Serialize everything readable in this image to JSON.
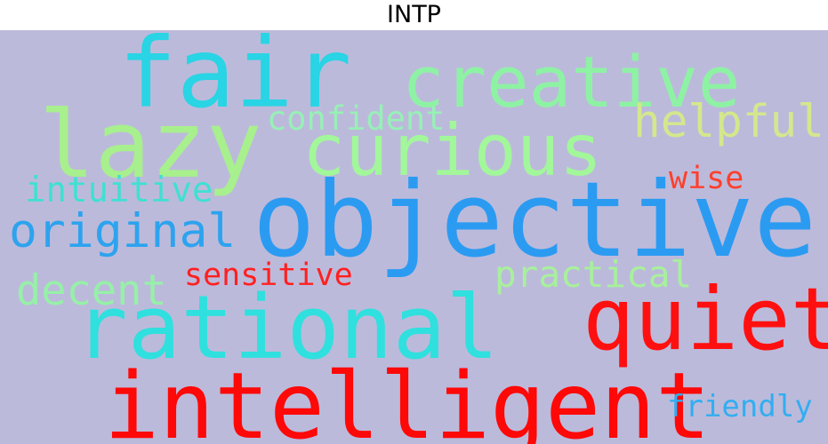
{
  "title": "INTP",
  "colors": {
    "background": "#bcbadb"
  },
  "words": [
    {
      "text": "fair",
      "color": "#29d4e4"
    },
    {
      "text": "creative",
      "color": "#8ef2a4"
    },
    {
      "text": "lazy",
      "color": "#a8ef8e"
    },
    {
      "text": "confident",
      "color": "#97f0b6"
    },
    {
      "text": "curious",
      "color": "#a2f79a"
    },
    {
      "text": "helpful",
      "color": "#d3e88c"
    },
    {
      "text": "intuitive",
      "color": "#3fe0d2"
    },
    {
      "text": "wise",
      "color": "#ff3f2c"
    },
    {
      "text": "objective",
      "color": "#2b9bf2"
    },
    {
      "text": "original",
      "color": "#2da3ee"
    },
    {
      "text": "sensitive",
      "color": "#ff2020"
    },
    {
      "text": "practical",
      "color": "#a8f09c"
    },
    {
      "text": "decent",
      "color": "#96f0a8"
    },
    {
      "text": "rational",
      "color": "#2fe0de"
    },
    {
      "text": "quiet",
      "color": "#ff1010"
    },
    {
      "text": "intelligent",
      "color": "#ff0808"
    },
    {
      "text": "friendly",
      "color": "#32aef0"
    }
  ]
}
